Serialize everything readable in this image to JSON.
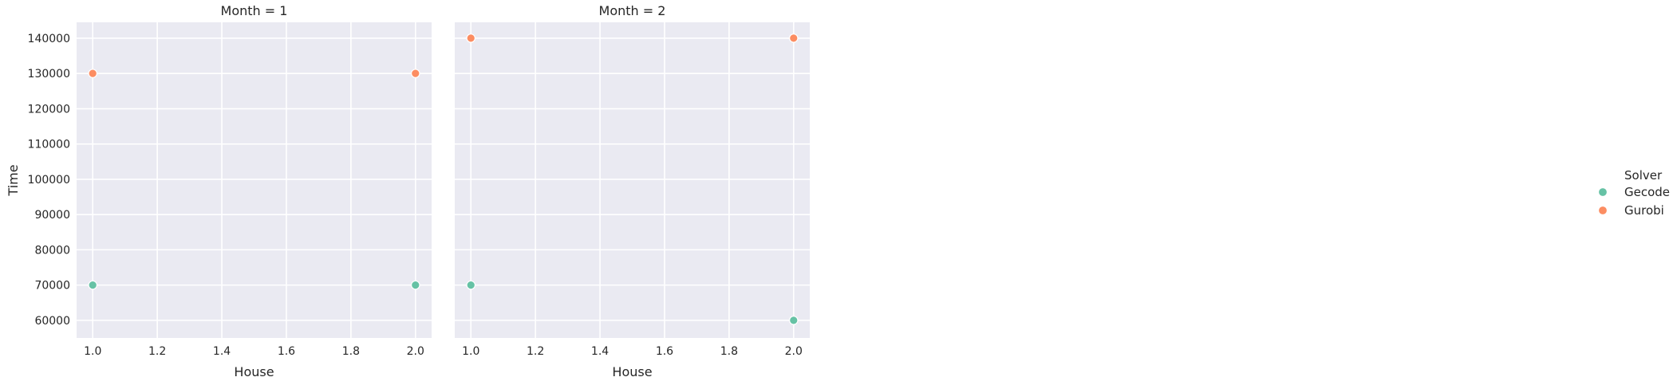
{
  "chart_data": {
    "type": "scatter",
    "facet_by": "Month",
    "xlabel": "House",
    "ylabel": "Time",
    "xlim": [
      0.95,
      2.05
    ],
    "ylim": [
      55000,
      144500
    ],
    "xticks": [
      1.0,
      1.2,
      1.4,
      1.6,
      1.8,
      2.0
    ],
    "xtick_labels": [
      "1.0",
      "1.2",
      "1.4",
      "1.6",
      "1.8",
      "2.0"
    ],
    "yticks": [
      60000,
      70000,
      80000,
      90000,
      100000,
      110000,
      120000,
      130000,
      140000
    ],
    "ytick_labels": [
      "60000",
      "70000",
      "80000",
      "90000",
      "100000",
      "110000",
      "120000",
      "130000",
      "140000"
    ],
    "grid": true,
    "legend": {
      "title": "Solver",
      "placement": "right",
      "entries": [
        {
          "name": "Gecode",
          "color": "#66c2a5"
        },
        {
          "name": "Gurobi",
          "color": "#fc8d62"
        }
      ]
    },
    "panels": [
      {
        "title": "Month = 1",
        "series": [
          {
            "name": "Gecode",
            "points": [
              {
                "x": 1.0,
                "y": 70000
              },
              {
                "x": 2.0,
                "y": 70000
              }
            ]
          },
          {
            "name": "Gurobi",
            "points": [
              {
                "x": 1.0,
                "y": 130000
              },
              {
                "x": 2.0,
                "y": 130000
              }
            ]
          }
        ]
      },
      {
        "title": "Month = 2",
        "series": [
          {
            "name": "Gecode",
            "points": [
              {
                "x": 1.0,
                "y": 70000
              },
              {
                "x": 2.0,
                "y": 60000
              }
            ]
          },
          {
            "name": "Gurobi",
            "points": [
              {
                "x": 1.0,
                "y": 140000
              },
              {
                "x": 2.0,
                "y": 140000
              }
            ]
          }
        ]
      }
    ]
  }
}
